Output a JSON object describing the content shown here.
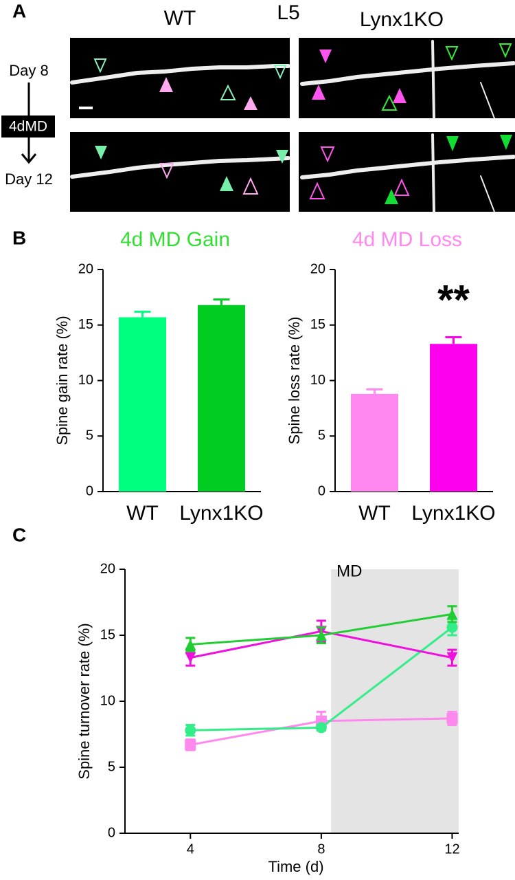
{
  "panel_labels": [
    "A",
    "B",
    "C"
  ],
  "panel_a": {
    "columns": [
      "WT",
      "Lynx1KO"
    ],
    "layer": "L5",
    "rows": [
      "Day 8",
      "Day 12"
    ],
    "treatment": "4dMD"
  },
  "chart_data": [
    {
      "type": "bar",
      "title": "4d MD Gain",
      "title_color": "#33dd33",
      "ylabel": "Spine gain rate (%)",
      "categories": [
        "WT",
        "Lynx1KO"
      ],
      "values": [
        15.7,
        16.8
      ],
      "errors": [
        0.5,
        0.5
      ],
      "colors": [
        "#00ff80",
        "#00cc22"
      ],
      "ylim": [
        0,
        20
      ],
      "yticks": [
        0,
        5,
        10,
        15,
        20
      ]
    },
    {
      "type": "bar",
      "title": "4d MD Loss",
      "title_color": "#ff88ee",
      "ylabel": "Spine loss rate (%)",
      "categories": [
        "WT",
        "Lynx1KO"
      ],
      "values": [
        8.8,
        13.3
      ],
      "errors": [
        0.4,
        0.6
      ],
      "colors": [
        "#ff88f0",
        "#ff00ee"
      ],
      "ylim": [
        0,
        20
      ],
      "yticks": [
        0,
        5,
        10,
        15,
        20
      ],
      "annotation": "**"
    },
    {
      "type": "line",
      "xlabel": "Time (d)",
      "ylabel": "Spine turnover rate (%)",
      "x": [
        4,
        8,
        12
      ],
      "xlim": [
        2,
        12.2
      ],
      "xticks": [
        4,
        8,
        12
      ],
      "ylim": [
        0,
        20
      ],
      "yticks": [
        0,
        5,
        10,
        15,
        20
      ],
      "shade": {
        "label": "MD",
        "range": [
          8.3,
          12.2
        ],
        "color": "#e4e4e4"
      },
      "series": [
        {
          "color": "#ff88ee",
          "marker": "square",
          "values": [
            6.7,
            8.5,
            8.7
          ],
          "errors": [
            0.4,
            0.7,
            0.5
          ]
        },
        {
          "color": "#33ee88",
          "marker": "circle",
          "values": [
            7.8,
            8.0,
            15.6
          ],
          "errors": [
            0.4,
            0.2,
            0.6
          ]
        },
        {
          "color": "#ee11dd",
          "marker": "triangle-down",
          "values": [
            13.3,
            15.3,
            13.3
          ],
          "errors": [
            0.6,
            0.8,
            0.6
          ]
        },
        {
          "color": "#22cc33",
          "marker": "triangle-up",
          "values": [
            14.3,
            15.0,
            16.6
          ],
          "errors": [
            0.5,
            0.6,
            0.6
          ]
        }
      ]
    }
  ]
}
